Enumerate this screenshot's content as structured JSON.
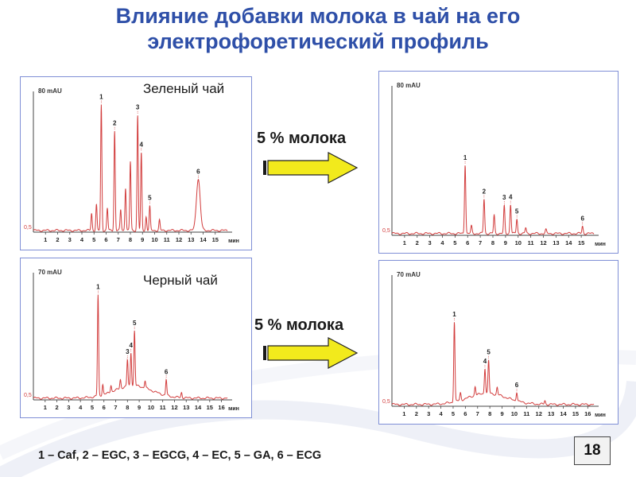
{
  "title_line1": "Влияние добавки молока в чай на его",
  "title_line2": "электрофоретический профиль",
  "milk_label_top": "5 % молока",
  "milk_label_bottom": "5 % молока",
  "legend": "1 – Caf, 2 – EGC, 3 – EGCG, 4 – EC, 5 – GA, 6 – ECG",
  "slide_number": "18",
  "colors": {
    "title": "#2e4fa8",
    "trace": "#d23c3c",
    "panel_border": "#7f8fd6",
    "arrow_fill": "#f2ea1c"
  },
  "chart_data": [
    {
      "type": "line",
      "panel_label": "Зеленый чай",
      "ylabel": "80 mAU",
      "y_origin_label": "0,5",
      "xlabel": "мин",
      "xlim": [
        0,
        16
      ],
      "ylim": [
        0,
        80
      ],
      "x_ticks": [
        "1",
        "2",
        "3",
        "4",
        "5",
        "6",
        "7",
        "8",
        "9",
        "10",
        "11",
        "12",
        "13",
        "14",
        "15"
      ],
      "peaks": [
        {
          "label": "1",
          "x": 5.6,
          "y": 73
        },
        {
          "label": "2",
          "x": 6.7,
          "y": 58
        },
        {
          "label": "3",
          "x": 8.6,
          "y": 67
        },
        {
          "label": "4",
          "x": 8.9,
          "y": 45
        },
        {
          "label": "5",
          "x": 9.6,
          "y": 14
        },
        {
          "label": "6",
          "x": 13.6,
          "y": 30
        }
      ],
      "minor_peaks": [
        {
          "x": 4.8,
          "y": 10
        },
        {
          "x": 5.2,
          "y": 15
        },
        {
          "x": 6.1,
          "y": 13
        },
        {
          "x": 7.2,
          "y": 12
        },
        {
          "x": 7.6,
          "y": 25
        },
        {
          "x": 8.0,
          "y": 40
        },
        {
          "x": 9.3,
          "y": 8
        },
        {
          "x": 10.4,
          "y": 6
        }
      ]
    },
    {
      "type": "line",
      "panel_label": "",
      "ylabel": "80 mAU",
      "y_origin_label": "0,5",
      "xlabel": "мин",
      "xlim": [
        0,
        16
      ],
      "ylim": [
        0,
        80
      ],
      "x_ticks": [
        "1",
        "2",
        "3",
        "4",
        "5",
        "6",
        "7",
        "8",
        "9",
        "10",
        "11",
        "12",
        "13",
        "14",
        "15"
      ],
      "peaks": [
        {
          "label": "1",
          "x": 5.8,
          "y": 38
        },
        {
          "label": "2",
          "x": 7.3,
          "y": 19
        },
        {
          "label": "3",
          "x": 8.9,
          "y": 15
        },
        {
          "label": "4",
          "x": 9.4,
          "y": 16
        },
        {
          "label": "5",
          "x": 9.9,
          "y": 8
        },
        {
          "label": "6",
          "x": 15.1,
          "y": 4
        }
      ],
      "minor_peaks": [
        {
          "x": 6.3,
          "y": 4
        },
        {
          "x": 8.1,
          "y": 10
        },
        {
          "x": 10.6,
          "y": 3
        },
        {
          "x": 12.2,
          "y": 2
        }
      ]
    },
    {
      "type": "line",
      "panel_label": "Черный чай",
      "ylabel": "70 mAU",
      "y_origin_label": "0,5",
      "xlabel": "мин",
      "xlim": [
        0,
        16.5
      ],
      "ylim": [
        0,
        70
      ],
      "x_ticks": [
        "1",
        "2",
        "3",
        "4",
        "5",
        "6",
        "7",
        "8",
        "9",
        "10",
        "11",
        "12",
        "13",
        "14",
        "15",
        "16"
      ],
      "hump": {
        "center": 8.5,
        "width": 4.5,
        "height": 7
      },
      "peaks": [
        {
          "label": "1",
          "x": 5.5,
          "y": 57
        },
        {
          "label": "3",
          "x": 8.0,
          "y": 15
        },
        {
          "label": "4",
          "x": 8.3,
          "y": 19
        },
        {
          "label": "5",
          "x": 8.6,
          "y": 31
        },
        {
          "label": "6",
          "x": 11.3,
          "y": 9
        }
      ],
      "minor_peaks": [
        {
          "x": 5.9,
          "y": 6
        },
        {
          "x": 6.6,
          "y": 4
        },
        {
          "x": 7.4,
          "y": 5
        },
        {
          "x": 9.5,
          "y": 4
        },
        {
          "x": 12.6,
          "y": 3
        }
      ]
    },
    {
      "type": "line",
      "panel_label": "",
      "ylabel": "70 mAU",
      "y_origin_label": "0,5",
      "xlabel": "мин",
      "xlim": [
        0,
        16.5
      ],
      "ylim": [
        0,
        70
      ],
      "x_ticks": [
        "1",
        "2",
        "3",
        "4",
        "5",
        "6",
        "7",
        "8",
        "9",
        "10",
        "11",
        "12",
        "13",
        "14",
        "15",
        "16"
      ],
      "hump": {
        "center": 7.8,
        "width": 4.5,
        "height": 6
      },
      "peaks": [
        {
          "label": "1",
          "x": 5.1,
          "y": 44
        },
        {
          "label": "4",
          "x": 7.6,
          "y": 14
        },
        {
          "label": "5",
          "x": 7.9,
          "y": 18
        },
        {
          "label": "6",
          "x": 10.2,
          "y": 5
        }
      ],
      "minor_peaks": [
        {
          "x": 5.6,
          "y": 4
        },
        {
          "x": 6.8,
          "y": 5
        },
        {
          "x": 8.6,
          "y": 4
        },
        {
          "x": 12.5,
          "y": 2
        }
      ]
    }
  ]
}
